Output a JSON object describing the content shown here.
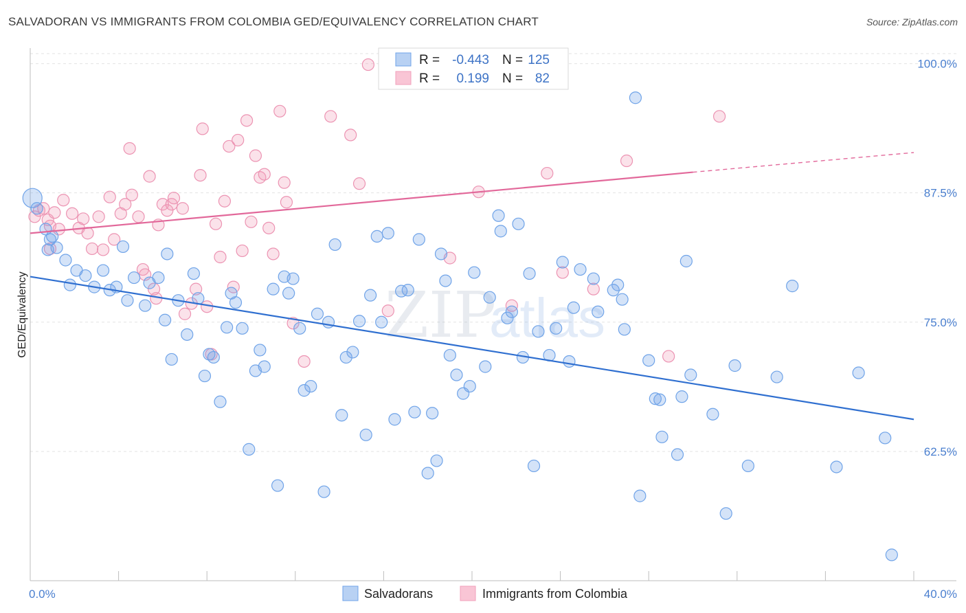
{
  "title": "SALVADORAN VS IMMIGRANTS FROM COLOMBIA GED/EQUIVALENCY CORRELATION CHART",
  "source": "Source: ZipAtlas.com",
  "watermark": {
    "zip": "ZIP",
    "atlas": "atlas"
  },
  "colors": {
    "blue": "#6fa3e8",
    "blue_line": "#2f6fd0",
    "pink": "#f1a0bb",
    "pink_line": "#e2689a",
    "tick": "#4a7fcf"
  },
  "stats": {
    "r_label": "R =",
    "n_label": "N =",
    "blue": {
      "r": "-0.443",
      "n": "125"
    },
    "pink": {
      "r": "0.199",
      "n": "82"
    }
  },
  "legend": {
    "blue": "Salvadorans",
    "pink": "Immigrants from Colombia"
  },
  "chart_data": {
    "type": "scatter",
    "title": "SALVADORAN VS IMMIGRANTS FROM COLOMBIA GED/EQUIVALENCY CORRELATION CHART",
    "xlabel": "",
    "ylabel": "GED/Equivalency",
    "xlim": [
      0,
      40
    ],
    "ylim": [
      50,
      101.5
    ],
    "x_tick_labels": [
      "0.0%",
      "40.0%"
    ],
    "y_ticks": [
      62.5,
      75.0,
      87.5,
      100.0
    ],
    "y_tick_labels": [
      "62.5%",
      "75.0%",
      "87.5%",
      "100.0%"
    ],
    "grid": true,
    "legend_position": "bottom-center",
    "series": [
      {
        "name": "Salvadorans",
        "color": "#6fa3e8",
        "trend": {
          "x": [
            0,
            40
          ],
          "y": [
            79.4,
            65.6
          ]
        },
        "points": [
          [
            0.1,
            87.0
          ],
          [
            0.3,
            86.0
          ],
          [
            0.7,
            84.0
          ],
          [
            0.9,
            83.0
          ],
          [
            1.2,
            82.2
          ],
          [
            1.6,
            81.0
          ],
          [
            0.8,
            82.0
          ],
          [
            1.0,
            83.3
          ],
          [
            2.1,
            80.0
          ],
          [
            1.8,
            78.6
          ],
          [
            2.5,
            79.5
          ],
          [
            2.9,
            78.4
          ],
          [
            3.3,
            80.0
          ],
          [
            3.6,
            78.1
          ],
          [
            4.2,
            82.3
          ],
          [
            3.9,
            78.4
          ],
          [
            4.4,
            77.1
          ],
          [
            4.7,
            79.3
          ],
          [
            5.2,
            76.6
          ],
          [
            5.4,
            78.8
          ],
          [
            5.8,
            79.3
          ],
          [
            6.1,
            75.2
          ],
          [
            6.2,
            81.6
          ],
          [
            6.4,
            71.4
          ],
          [
            6.7,
            77.1
          ],
          [
            7.1,
            73.8
          ],
          [
            7.4,
            79.7
          ],
          [
            7.6,
            77.3
          ],
          [
            7.9,
            69.8
          ],
          [
            8.1,
            71.9
          ],
          [
            8.3,
            71.6
          ],
          [
            8.6,
            67.3
          ],
          [
            8.9,
            74.5
          ],
          [
            9.1,
            77.8
          ],
          [
            9.3,
            76.9
          ],
          [
            9.6,
            74.4
          ],
          [
            9.9,
            62.7
          ],
          [
            10.2,
            70.3
          ],
          [
            10.4,
            72.3
          ],
          [
            10.6,
            70.7
          ],
          [
            11.0,
            78.2
          ],
          [
            11.2,
            59.2
          ],
          [
            11.5,
            79.4
          ],
          [
            11.7,
            77.8
          ],
          [
            11.9,
            79.2
          ],
          [
            12.2,
            74.4
          ],
          [
            12.4,
            68.4
          ],
          [
            12.7,
            68.8
          ],
          [
            13.0,
            75.8
          ],
          [
            13.3,
            58.6
          ],
          [
            13.5,
            75.0
          ],
          [
            13.8,
            82.5
          ],
          [
            14.1,
            66.0
          ],
          [
            14.3,
            71.6
          ],
          [
            14.6,
            72.1
          ],
          [
            14.9,
            75.1
          ],
          [
            15.2,
            64.1
          ],
          [
            15.4,
            77.6
          ],
          [
            15.7,
            83.3
          ],
          [
            15.9,
            75.0
          ],
          [
            16.2,
            83.6
          ],
          [
            16.5,
            65.6
          ],
          [
            16.8,
            78.0
          ],
          [
            17.1,
            78.1
          ],
          [
            17.4,
            66.3
          ],
          [
            17.6,
            83.0
          ],
          [
            18.0,
            60.4
          ],
          [
            18.2,
            66.2
          ],
          [
            18.4,
            61.6
          ],
          [
            18.6,
            81.6
          ],
          [
            18.8,
            79.0
          ],
          [
            19.0,
            71.8
          ],
          [
            19.3,
            69.9
          ],
          [
            19.6,
            68.1
          ],
          [
            19.9,
            68.8
          ],
          [
            20.1,
            79.8
          ],
          [
            20.6,
            70.7
          ],
          [
            20.8,
            77.4
          ],
          [
            21.2,
            85.3
          ],
          [
            21.3,
            83.8
          ],
          [
            21.6,
            75.4
          ],
          [
            21.8,
            76.0
          ],
          [
            22.1,
            84.5
          ],
          [
            22.3,
            71.6
          ],
          [
            22.6,
            79.7
          ],
          [
            22.8,
            61.1
          ],
          [
            23.0,
            74.1
          ],
          [
            23.5,
            71.8
          ],
          [
            23.8,
            74.4
          ],
          [
            24.1,
            80.8
          ],
          [
            24.4,
            71.2
          ],
          [
            24.6,
            76.4
          ],
          [
            24.9,
            80.1
          ],
          [
            25.5,
            79.2
          ],
          [
            25.7,
            76.0
          ],
          [
            26.4,
            78.1
          ],
          [
            26.6,
            78.6
          ],
          [
            26.8,
            77.2
          ],
          [
            26.9,
            74.3
          ],
          [
            27.4,
            96.7
          ],
          [
            27.6,
            58.2
          ],
          [
            28.0,
            71.3
          ],
          [
            28.3,
            67.6
          ],
          [
            28.5,
            67.5
          ],
          [
            28.6,
            63.9
          ],
          [
            29.3,
            62.2
          ],
          [
            29.5,
            67.8
          ],
          [
            29.7,
            80.9
          ],
          [
            29.9,
            69.9
          ],
          [
            30.9,
            66.1
          ],
          [
            31.5,
            56.5
          ],
          [
            31.9,
            70.8
          ],
          [
            32.5,
            61.1
          ],
          [
            33.8,
            69.7
          ],
          [
            34.5,
            78.5
          ],
          [
            36.5,
            61.0
          ],
          [
            37.5,
            70.1
          ],
          [
            38.7,
            63.8
          ],
          [
            39.0,
            52.5
          ]
        ]
      },
      {
        "name": "Immigrants from Colombia",
        "color": "#f1a0bb",
        "trend": {
          "x": [
            0,
            30
          ],
          "y": [
            83.6,
            89.5
          ]
        },
        "trend_dashed": {
          "x": [
            30,
            40
          ],
          "y": [
            89.5,
            91.4
          ]
        },
        "points": [
          [
            0.2,
            85.2
          ],
          [
            0.4,
            85.8
          ],
          [
            0.6,
            86.0
          ],
          [
            0.8,
            84.9
          ],
          [
            0.9,
            84.3
          ],
          [
            1.1,
            85.6
          ],
          [
            1.3,
            84.0
          ],
          [
            1.5,
            86.8
          ],
          [
            0.9,
            82.1
          ],
          [
            1.9,
            85.5
          ],
          [
            2.2,
            84.1
          ],
          [
            2.4,
            85.0
          ],
          [
            2.6,
            83.6
          ],
          [
            2.8,
            82.1
          ],
          [
            3.1,
            85.2
          ],
          [
            3.3,
            82.0
          ],
          [
            3.6,
            87.1
          ],
          [
            3.8,
            83.0
          ],
          [
            4.1,
            85.5
          ],
          [
            4.3,
            86.4
          ],
          [
            4.5,
            91.8
          ],
          [
            4.6,
            87.3
          ],
          [
            4.9,
            85.2
          ],
          [
            5.1,
            80.1
          ],
          [
            5.2,
            79.6
          ],
          [
            5.4,
            89.1
          ],
          [
            5.6,
            78.2
          ],
          [
            5.7,
            77.3
          ],
          [
            5.8,
            84.4
          ],
          [
            6.0,
            86.4
          ],
          [
            6.2,
            85.8
          ],
          [
            6.4,
            86.4
          ],
          [
            6.5,
            87.0
          ],
          [
            6.9,
            86.0
          ],
          [
            7.0,
            75.8
          ],
          [
            7.3,
            76.8
          ],
          [
            7.5,
            78.2
          ],
          [
            7.7,
            89.2
          ],
          [
            7.8,
            93.7
          ],
          [
            8.0,
            76.5
          ],
          [
            8.2,
            71.9
          ],
          [
            8.4,
            84.5
          ],
          [
            8.6,
            81.3
          ],
          [
            8.8,
            86.7
          ],
          [
            9.0,
            92.0
          ],
          [
            9.2,
            78.4
          ],
          [
            9.4,
            92.6
          ],
          [
            9.6,
            81.9
          ],
          [
            9.8,
            94.5
          ],
          [
            10.0,
            84.7
          ],
          [
            10.2,
            91.1
          ],
          [
            10.4,
            89.0
          ],
          [
            10.6,
            89.3
          ],
          [
            10.8,
            84.1
          ],
          [
            11.0,
            81.6
          ],
          [
            11.3,
            95.4
          ],
          [
            11.5,
            88.5
          ],
          [
            11.6,
            86.6
          ],
          [
            11.9,
            74.9
          ],
          [
            12.4,
            71.2
          ],
          [
            13.6,
            94.9
          ],
          [
            14.5,
            93.1
          ],
          [
            14.9,
            88.4
          ],
          [
            15.3,
            99.9
          ],
          [
            16.2,
            76.1
          ],
          [
            17.5,
            99.9
          ],
          [
            19.0,
            81.2
          ],
          [
            19.2,
            99.9
          ],
          [
            20.3,
            87.6
          ],
          [
            21.8,
            76.6
          ],
          [
            23.4,
            89.4
          ],
          [
            24.1,
            79.8
          ],
          [
            25.5,
            78.2
          ],
          [
            27.0,
            90.6
          ],
          [
            28.9,
            71.7
          ],
          [
            31.2,
            94.9
          ]
        ]
      }
    ]
  }
}
